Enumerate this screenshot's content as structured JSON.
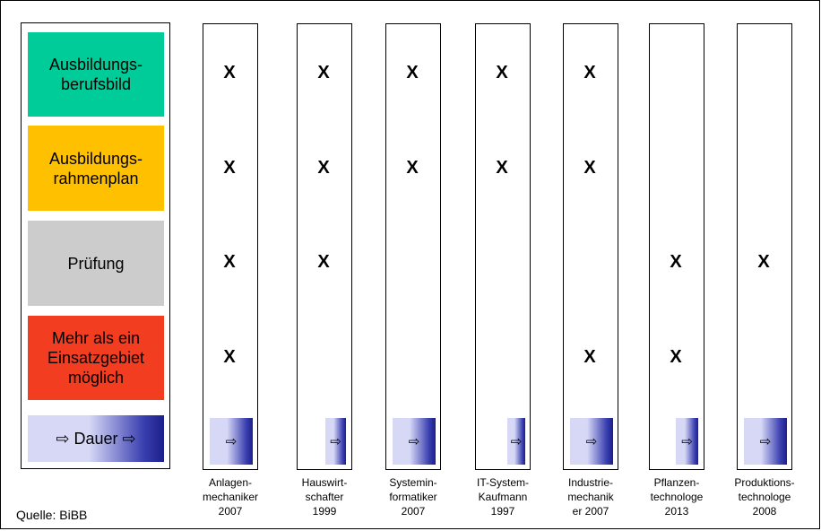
{
  "legend": {
    "ausbildungsberufsbild": {
      "line1": "Ausbildungs-",
      "line2": "berufsbild",
      "color": "#00cc99"
    },
    "rahmenplan": {
      "line1": "Ausbildungs-",
      "line2": "rahmenplan",
      "color": "#ffc000"
    },
    "pruefung": {
      "line1": "Prüfung",
      "color": "#cccccc"
    },
    "einsatzgebiet": {
      "line1": "Mehr als ein",
      "line2": "Einsatzgebiet",
      "line3": "möglich",
      "color": "#f23d21"
    },
    "dauer": {
      "label": "⇨ Dauer ⇨"
    }
  },
  "mark_symbol": "X",
  "arrow_symbol": "⇨",
  "source": "Quelle: BiBB",
  "professions": [
    {
      "line1": "Anlagen-",
      "line2": "mechaniker",
      "line3": "2007",
      "berufsbild": true,
      "rahmenplan": true,
      "pruefung": true,
      "einsatz": true
    },
    {
      "line1": "Hauswirt-",
      "line2": "schafter",
      "line3": "1999",
      "berufsbild": true,
      "rahmenplan": true,
      "pruefung": true,
      "einsatz": false
    },
    {
      "line1": "Systemin-",
      "line2": "formatiker",
      "line3": "2007",
      "berufsbild": true,
      "rahmenplan": true,
      "pruefung": false,
      "einsatz": false
    },
    {
      "line1": "IT-System-",
      "line2": "Kaufmann",
      "line3": "1997",
      "berufsbild": true,
      "rahmenplan": true,
      "pruefung": false,
      "einsatz": false
    },
    {
      "line1": "Industrie-",
      "line2": "mechanik",
      "line3": "er 2007",
      "berufsbild": true,
      "rahmenplan": true,
      "pruefung": false,
      "einsatz": true
    },
    {
      "line1": "Pflanzen-",
      "line2": "technologe",
      "line3": "2013",
      "berufsbild": false,
      "rahmenplan": false,
      "pruefung": true,
      "einsatz": true
    },
    {
      "line1": "Produktions-",
      "line2": "technologe",
      "line3": "2008",
      "berufsbild": false,
      "rahmenplan": false,
      "pruefung": true,
      "einsatz": false
    }
  ]
}
